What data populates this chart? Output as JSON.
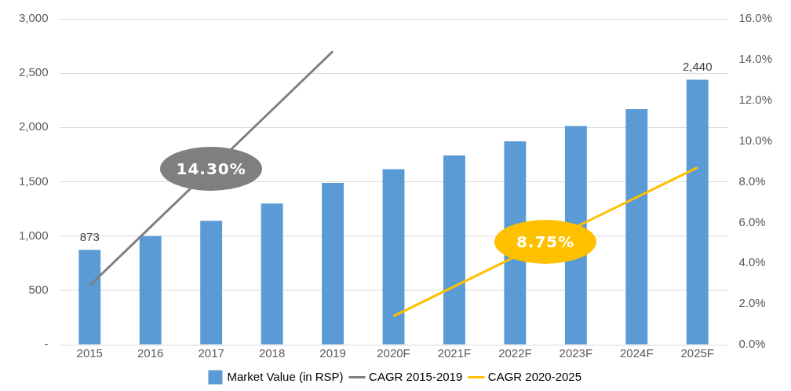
{
  "chart_data": {
    "type": "bar",
    "categories": [
      "2015",
      "2016",
      "2017",
      "2018",
      "2019",
      "2020F",
      "2021F",
      "2022F",
      "2023F",
      "2024F",
      "2025F"
    ],
    "series": [
      {
        "name": "Market Value (in RSP)",
        "color": "#5b9bd5",
        "values": [
          873,
          1000,
          1140,
          1300,
          1490,
          1615,
          1743,
          1873,
          2013,
          2169,
          2440
        ],
        "value_labels": [
          "873",
          null,
          null,
          null,
          null,
          null,
          null,
          null,
          null,
          null,
          "2,440"
        ]
      },
      {
        "name": "CAGR 2015-2019",
        "type": "line",
        "axis": "y2",
        "color": "#7f7f7f",
        "values": [
          2.9,
          null,
          null,
          null,
          14.4,
          null,
          null,
          null,
          null,
          null,
          null
        ]
      },
      {
        "name": "CAGR 2020-2025",
        "type": "line",
        "axis": "y2",
        "color": "#ffc000",
        "values": [
          null,
          null,
          null,
          null,
          null,
          1.4,
          null,
          null,
          null,
          null,
          8.7
        ]
      }
    ],
    "ylim": [
      0,
      3000
    ],
    "yticks": [
      {
        "value": 0,
        "label": "-"
      },
      {
        "value": 500,
        "label": "500"
      },
      {
        "value": 1000,
        "label": "1,000"
      },
      {
        "value": 1500,
        "label": "1,500"
      },
      {
        "value": 2000,
        "label": "2,000"
      },
      {
        "value": 2500,
        "label": "2,500"
      },
      {
        "value": 3000,
        "label": "3,000"
      }
    ],
    "y2lim": [
      0,
      16
    ],
    "y2ticks": [
      {
        "value": 0,
        "label": "0.0%"
      },
      {
        "value": 2,
        "label": "2.0%"
      },
      {
        "value": 4,
        "label": "4.0%"
      },
      {
        "value": 6,
        "label": "6.0%"
      },
      {
        "value": 8,
        "label": "8.0%"
      },
      {
        "value": 10,
        "label": "10.0%"
      },
      {
        "value": 12,
        "label": "12.0%"
      },
      {
        "value": 14,
        "label": "14.0%"
      },
      {
        "value": 16,
        "label": "16.0%"
      }
    ],
    "annotations": [
      "14.30%",
      "8.75%"
    ],
    "grid": "y",
    "legend": "bottom",
    "marker": "none",
    "line_style": "solid"
  }
}
